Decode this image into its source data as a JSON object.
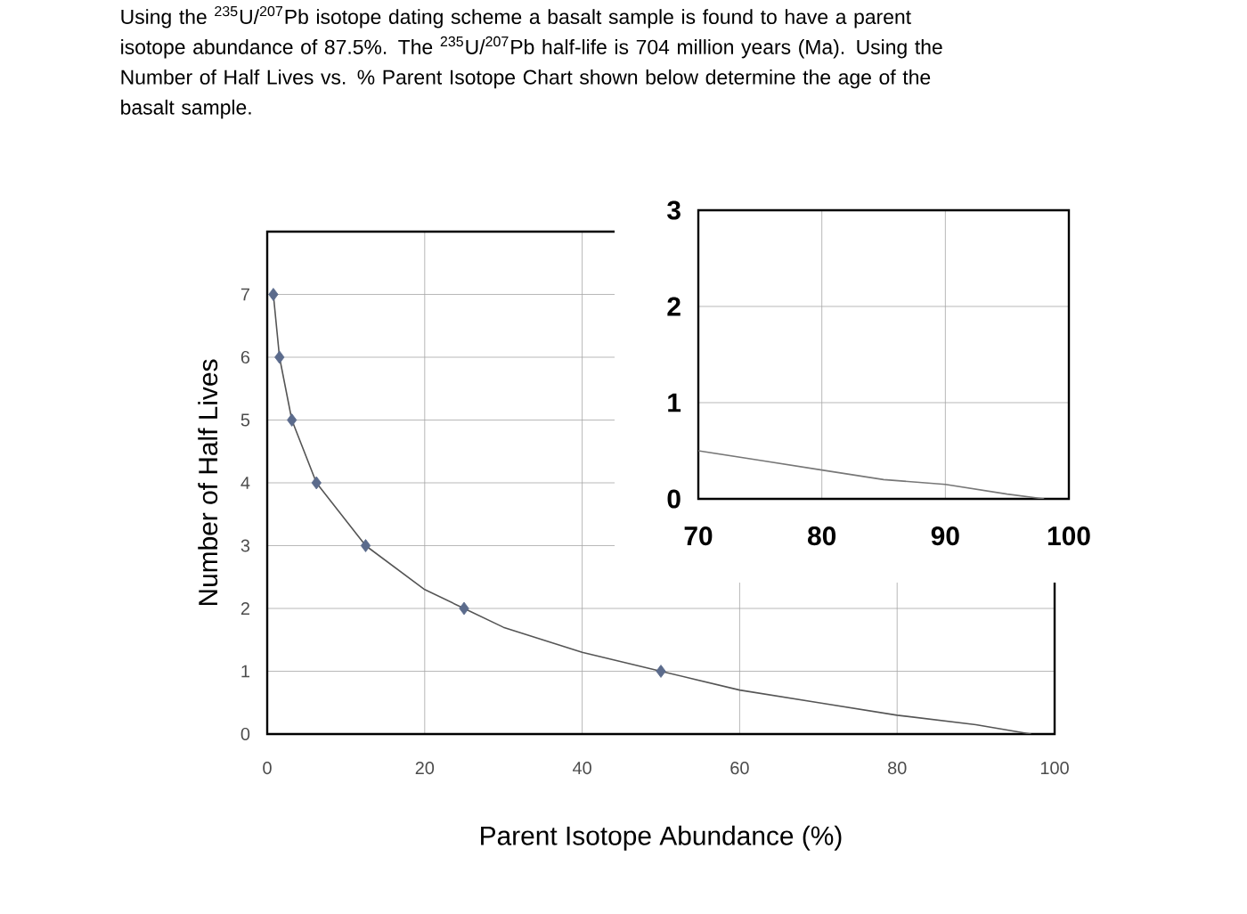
{
  "chart_data": [
    {
      "type": "line",
      "title": "Using the $^{235}$U/$^{207}$Pb isotope dating scheme a basalt sample is found to have a parent isotope abundance of 87.5%. The $^{235}$U/$^{207}$Pb half-life is 704 million years (Ma). Using the Number of Half Lives vs. % Parent Isotope Chart shown below determine the age of the basalt sample.",
      "xlabel": "Parent Isotope Abundance (%)",
      "ylabel": "Number of Half Lives",
      "xlim": [
        0,
        100
      ],
      "ylim": [
        0,
        8
      ],
      "xticks": [
        0,
        20,
        40,
        60,
        80,
        100
      ],
      "yticks": [
        0,
        1,
        2,
        3,
        4,
        5,
        6,
        7
      ],
      "grid": true,
      "series": [
        {
          "type": "line",
          "color": "#555555",
          "marker": "none",
          "x": [
            0.78,
            1.56,
            3.13,
            6.25,
            12.5,
            20,
            25,
            30,
            40,
            50,
            60,
            70,
            80,
            90,
            97
          ],
          "values": [
            7,
            6,
            5,
            4,
            3,
            2.3,
            2,
            1.7,
            1.3,
            1,
            0.7,
            0.5,
            0.3,
            0.15,
            0
          ]
        },
        {
          "type": "scatter",
          "color": "#5b6b8c",
          "marker": "diamond",
          "x": [
            0.78,
            1.56,
            3.13,
            6.25,
            12.5,
            25,
            50
          ],
          "values": [
            7,
            6,
            5,
            4,
            3,
            2,
            1
          ]
        }
      ]
    },
    {
      "type": "line",
      "xlim": [
        70,
        100
      ],
      "ylim": [
        0,
        3
      ],
      "xticks": [
        70,
        80,
        90,
        100
      ],
      "yticks": [
        0,
        1,
        2,
        3
      ],
      "grid": true,
      "series": [
        {
          "type": "line",
          "color": "#777777",
          "marker": "none",
          "x": [
            70,
            75,
            80,
            85,
            90,
            95,
            98
          ],
          "values": [
            0.5,
            0.4,
            0.3,
            0.2,
            0.15,
            0.05,
            0
          ]
        }
      ]
    }
  ]
}
